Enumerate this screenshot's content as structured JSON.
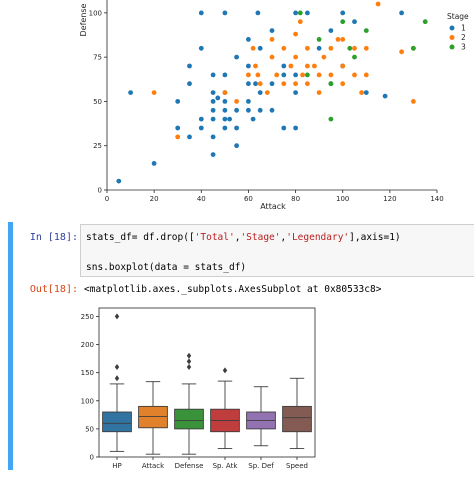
{
  "scatter": {
    "chart_data": {
      "type": "scatter",
      "xlabel": "Attack",
      "ylabel": "Defense",
      "xlim": [
        0,
        140
      ],
      "ylim": [
        0,
        105
      ],
      "xticks": [
        "0",
        "20",
        "40",
        "60",
        "80",
        "100",
        "120",
        "140"
      ],
      "yticks": [
        "0",
        "25",
        "50",
        "75",
        "100"
      ],
      "legend": {
        "title": "Stage",
        "placement": "right",
        "entries": [
          "1",
          "2",
          "3"
        ]
      },
      "series": [
        {
          "name": "1",
          "color": "#1f77b4",
          "points": [
            [
              5,
              5
            ],
            [
              10,
              55
            ],
            [
              20,
              15
            ],
            [
              30,
              35
            ],
            [
              30,
              50
            ],
            [
              35,
              30
            ],
            [
              35,
              60
            ],
            [
              35,
              70
            ],
            [
              40,
              40
            ],
            [
              40,
              35
            ],
            [
              40,
              100
            ],
            [
              40,
              80
            ],
            [
              45,
              50
            ],
            [
              45,
              55
            ],
            [
              45,
              40
            ],
            [
              45,
              45
            ],
            [
              45,
              65
            ],
            [
              45,
              20
            ],
            [
              45,
              30
            ],
            [
              47,
              52
            ],
            [
              50,
              50
            ],
            [
              50,
              45
            ],
            [
              50,
              40
            ],
            [
              50,
              35
            ],
            [
              50,
              65
            ],
            [
              50,
              55
            ],
            [
              50,
              100
            ],
            [
              52,
              40
            ],
            [
              55,
              45
            ],
            [
              55,
              25
            ],
            [
              55,
              35
            ],
            [
              55,
              75
            ],
            [
              60,
              45
            ],
            [
              60,
              50
            ],
            [
              60,
              60
            ],
            [
              60,
              70
            ],
            [
              60,
              85
            ],
            [
              62,
              40
            ],
            [
              63,
              60
            ],
            [
              64,
              100
            ],
            [
              65,
              80
            ],
            [
              65,
              55
            ],
            [
              65,
              45
            ],
            [
              70,
              45
            ],
            [
              70,
              60
            ],
            [
              70,
              90
            ],
            [
              75,
              35
            ],
            [
              75,
              70
            ],
            [
              75,
              65
            ],
            [
              80,
              35
            ],
            [
              80,
              65
            ],
            [
              80,
              55
            ],
            [
              80,
              100
            ],
            [
              85,
              100
            ],
            [
              90,
              80
            ],
            [
              95,
              60
            ],
            [
              95,
              90
            ],
            [
              100,
              70
            ],
            [
              100,
              100
            ],
            [
              105,
              95
            ],
            [
              110,
              55
            ],
            [
              118,
              53
            ],
            [
              125,
              100
            ]
          ]
        },
        {
          "name": "2",
          "color": "#ff7f0e",
          "points": [
            [
              20,
              55
            ],
            [
              30,
              30
            ],
            [
              50,
              55
            ],
            [
              55,
              50
            ],
            [
              60,
              65
            ],
            [
              62,
              80
            ],
            [
              63,
              70
            ],
            [
              64,
              65
            ],
            [
              65,
              60
            ],
            [
              68,
              55
            ],
            [
              70,
              75
            ],
            [
              70,
              85
            ],
            [
              72,
              65
            ],
            [
              75,
              60
            ],
            [
              75,
              80
            ],
            [
              78,
              70
            ],
            [
              80,
              60
            ],
            [
              80,
              75
            ],
            [
              80,
              88
            ],
            [
              82,
              95
            ],
            [
              83,
              65
            ],
            [
              85,
              60
            ],
            [
              85,
              70
            ],
            [
              85,
              80
            ],
            [
              88,
              70
            ],
            [
              90,
              65
            ],
            [
              90,
              55
            ],
            [
              92,
              75
            ],
            [
              95,
              80
            ],
            [
              95,
              65
            ],
            [
              98,
              85
            ],
            [
              100,
              60
            ],
            [
              100,
              70
            ],
            [
              100,
              85
            ],
            [
              105,
              80
            ],
            [
              105,
              65
            ],
            [
              108,
              55
            ],
            [
              110,
              80
            ],
            [
              110,
              65
            ],
            [
              115,
              105
            ],
            [
              125,
              78
            ],
            [
              130,
              80
            ],
            [
              130,
              50
            ]
          ]
        },
        {
          "name": "3",
          "color": "#2ca02c",
          "points": [
            [
              82,
              100
            ],
            [
              85,
              65
            ],
            [
              90,
              85
            ],
            [
              95,
              40
            ],
            [
              95,
              60
            ],
            [
              100,
              95
            ],
            [
              103,
              80
            ],
            [
              105,
              75
            ],
            [
              110,
              90
            ],
            [
              130,
              80
            ],
            [
              135,
              95
            ]
          ]
        }
      ]
    }
  },
  "cell": {
    "in_prompt": "In [18]:",
    "code_lines": [
      [
        "stats_df= df.drop([",
        "'Total'",
        ",",
        "'Stage'",
        ",",
        "'Legendary'",
        "],axis=1)"
      ],
      [
        "sns.boxplot(data = stats_df)"
      ]
    ],
    "out_prompt": "Out[18]:",
    "output_text": "<matplotlib.axes._subplots.AxesSubplot at 0x80533c8>"
  },
  "boxplot": {
    "chart_data": {
      "type": "box",
      "categories": [
        "HP",
        "Attack",
        "Defense",
        "Sp. Atk",
        "Sp. Def",
        "Speed"
      ],
      "yticks": [
        "0",
        "50",
        "100",
        "150",
        "200",
        "250"
      ],
      "ylim": [
        0,
        265
      ],
      "boxes": [
        {
          "name": "HP",
          "color": "#3274a1",
          "whisker_low": 10,
          "q1": 45,
          "median": 60,
          "q3": 80,
          "whisker_high": 130,
          "outliers": [
            140,
            160,
            250
          ]
        },
        {
          "name": "Attack",
          "color": "#e1812c",
          "whisker_low": 5,
          "q1": 52,
          "median": 72,
          "q3": 90,
          "whisker_high": 134,
          "outliers": []
        },
        {
          "name": "Defense",
          "color": "#3a923a",
          "whisker_low": 5,
          "q1": 50,
          "median": 65,
          "q3": 85,
          "whisker_high": 130,
          "outliers": [
            160,
            170,
            180
          ]
        },
        {
          "name": "Sp. Atk",
          "color": "#c03d3e",
          "whisker_low": 15,
          "q1": 45,
          "median": 65,
          "q3": 85,
          "whisker_high": 135,
          "outliers": [
            154
          ]
        },
        {
          "name": "Sp. Def",
          "color": "#9372b2",
          "whisker_low": 20,
          "q1": 50,
          "median": 65,
          "q3": 80,
          "whisker_high": 125,
          "outliers": []
        },
        {
          "name": "Speed",
          "color": "#845b53",
          "whisker_low": 15,
          "q1": 45,
          "median": 70,
          "q3": 90,
          "whisker_high": 140,
          "outliers": []
        }
      ]
    }
  }
}
